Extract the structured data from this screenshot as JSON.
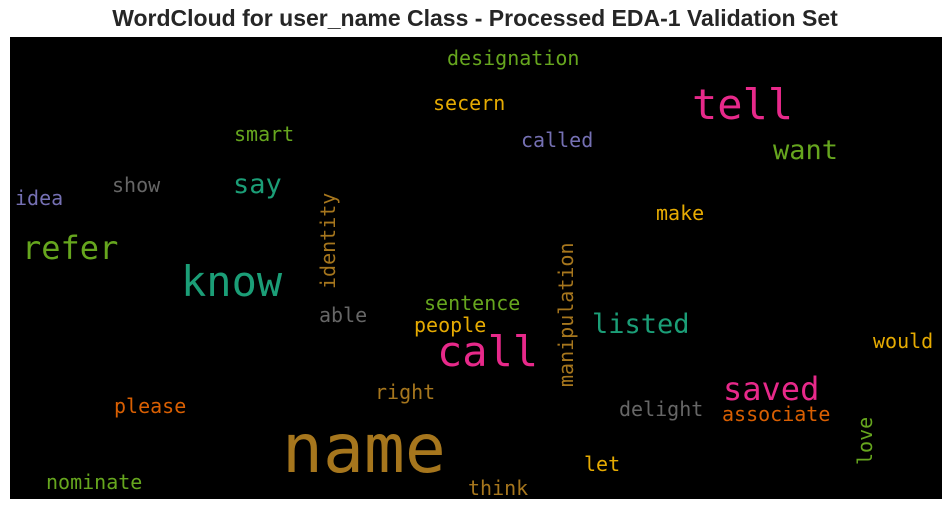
{
  "title": "WordCloud for user_name Class - Processed EDA-1 Validation Set",
  "words": [
    {
      "text": "name",
      "color": "#a6761d"
    },
    {
      "text": "tell",
      "color": "#e7298a"
    },
    {
      "text": "call",
      "color": "#e7298a"
    },
    {
      "text": "know",
      "color": "#1b9e77"
    },
    {
      "text": "refer",
      "color": "#66a61e"
    },
    {
      "text": "saved",
      "color": "#e7298a"
    },
    {
      "text": "listed",
      "color": "#1b9e77"
    },
    {
      "text": "want",
      "color": "#66a61e"
    },
    {
      "text": "say",
      "color": "#1b9e77"
    },
    {
      "text": "designation",
      "color": "#66a61e"
    },
    {
      "text": "secern",
      "color": "#e6ab02"
    },
    {
      "text": "smart",
      "color": "#66a61e"
    },
    {
      "text": "called",
      "color": "#7570b3"
    },
    {
      "text": "show",
      "color": "#666666"
    },
    {
      "text": "idea",
      "color": "#7570b3"
    },
    {
      "text": "identity",
      "color": "#a6761d"
    },
    {
      "text": "manipulation",
      "color": "#a6761d"
    },
    {
      "text": "make",
      "color": "#e6ab02"
    },
    {
      "text": "sentence",
      "color": "#66a61e"
    },
    {
      "text": "able",
      "color": "#666666"
    },
    {
      "text": "people",
      "color": "#e6ab02"
    },
    {
      "text": "would",
      "color": "#e6ab02"
    },
    {
      "text": "right",
      "color": "#a6761d"
    },
    {
      "text": "please",
      "color": "#d95f02"
    },
    {
      "text": "delight",
      "color": "#666666"
    },
    {
      "text": "associate",
      "color": "#d95f02"
    },
    {
      "text": "love",
      "color": "#66a61e"
    },
    {
      "text": "let",
      "color": "#e6ab02"
    },
    {
      "text": "think",
      "color": "#a6761d"
    },
    {
      "text": "nominate",
      "color": "#66a61e"
    }
  ]
}
